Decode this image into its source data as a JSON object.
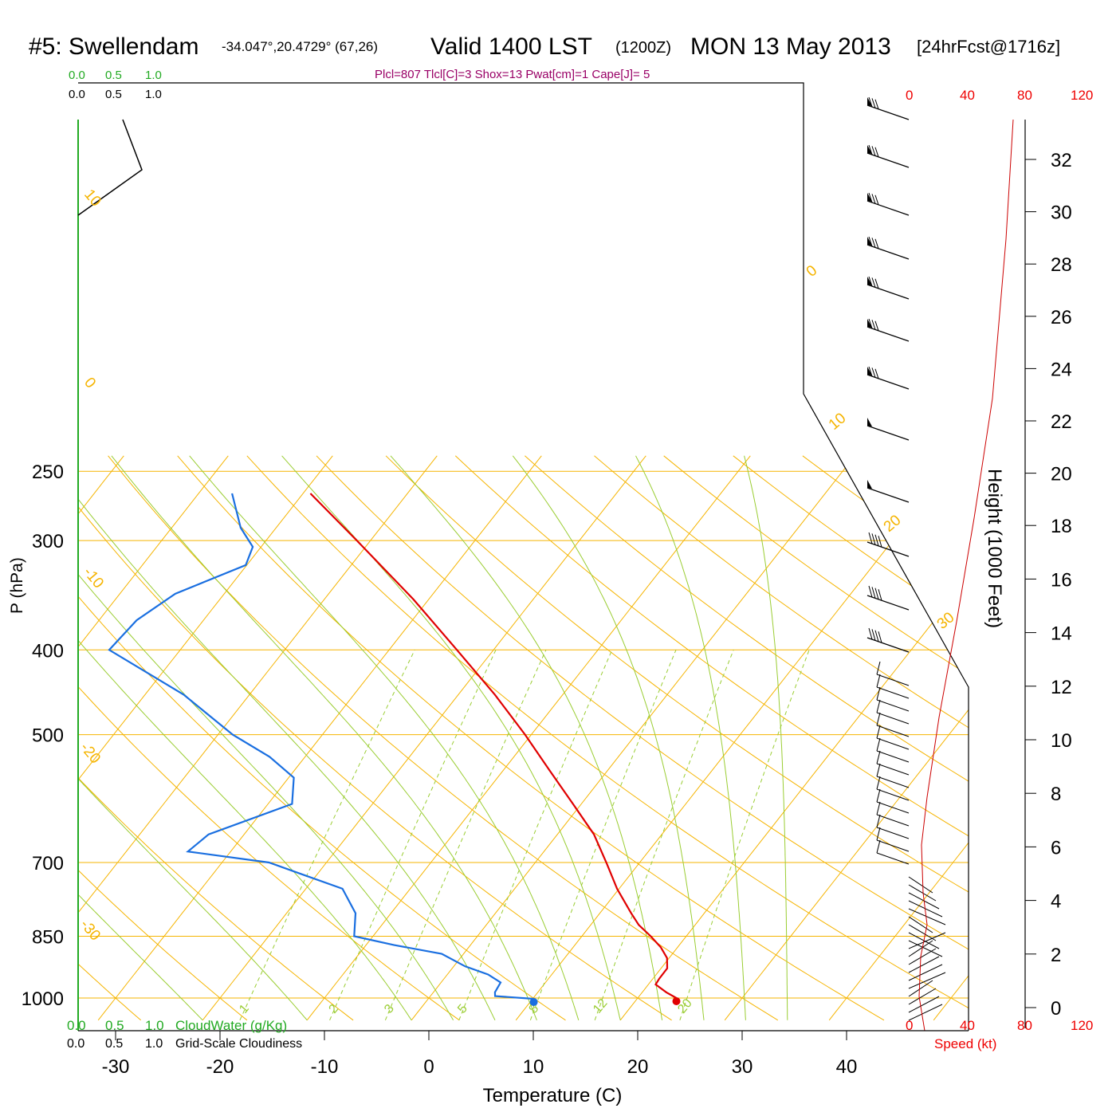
{
  "header": {
    "station": "#5: Swellendam",
    "coords": "-34.047°,20.4729° (67,26)",
    "valid": "Valid 1400 LST",
    "zulu": "(1200Z)",
    "date": "MON 13 May 2013",
    "forecast": "[24hrFcst@1716z]"
  },
  "params_line": "Plcl=807 Tlcl[C]=3 Shox=13 Pwat[cm]=1 Cape[J]= 5",
  "top_scales": {
    "cloudwater_ticks": [
      "0.0",
      "0.5",
      "1.0"
    ],
    "cloudiness_ticks": [
      "0.0",
      "0.5",
      "1.0"
    ]
  },
  "bottom_labels": {
    "cloudwater": "CloudWater (g/Kg)",
    "cloudiness": "Grid-Scale Cloudiness",
    "speed_label": "Speed (kt)"
  },
  "colors": {
    "temperature": "#e00000",
    "dewpoint": "#1a6fe0",
    "isotherm": "#f5b400",
    "dry_adiabat": "#f5b400",
    "moist_adiabat": "#9acd32",
    "mixing_ratio": "#9acd32",
    "cloudwater": "#22aa22",
    "params": "#990066",
    "speed": "#ee0000"
  },
  "chart_data": {
    "type": "line",
    "chart": "skew-T log-P sounding",
    "xlabel": "Temperature (C)",
    "ylabel": "P (hPa)",
    "x_ticks": [
      -30,
      -20,
      -10,
      0,
      10,
      20,
      30,
      40
    ],
    "y_ticks": [
      250,
      300,
      400,
      500,
      700,
      850,
      1000
    ],
    "xlim_at_1000hPa": [
      -33,
      46
    ],
    "ylim": [
      1050,
      250
    ],
    "y_scale": "log",
    "grid": true,
    "isotherm_labels": [
      "10",
      "0",
      "-10",
      "-20",
      "-30",
      "0",
      "10",
      "20",
      "30"
    ],
    "mixing_ratio_labels": [
      "1",
      "2",
      "3",
      "5",
      "8",
      "12",
      "20"
    ],
    "series": [
      {
        "name": "Temperature",
        "points": [
          {
            "p": 1000,
            "t": 23.7
          },
          {
            "p": 985,
            "t": 22.3
          },
          {
            "p": 965,
            "t": 20.7
          },
          {
            "p": 950,
            "t": 20.6
          },
          {
            "p": 925,
            "t": 20.6
          },
          {
            "p": 900,
            "t": 19.8
          },
          {
            "p": 875,
            "t": 18.4
          },
          {
            "p": 850,
            "t": 16.6
          },
          {
            "p": 825,
            "t": 14.6
          },
          {
            "p": 800,
            "t": 13.0
          },
          {
            "p": 750,
            "t": 9.8
          },
          {
            "p": 700,
            "t": 6.8
          },
          {
            "p": 650,
            "t": 3.5
          },
          {
            "p": 600,
            "t": -0.8
          },
          {
            "p": 550,
            "t": -5.5
          },
          {
            "p": 500,
            "t": -10.6
          },
          {
            "p": 450,
            "t": -16.5
          },
          {
            "p": 400,
            "t": -23.5
          },
          {
            "p": 350,
            "t": -31.5
          },
          {
            "p": 300,
            "t": -41.3
          },
          {
            "p": 265,
            "t": -49.3
          }
        ]
      },
      {
        "name": "Dewpoint",
        "points": [
          {
            "p": 1002,
            "t": 10.1
          },
          {
            "p": 995,
            "t": 6.2
          },
          {
            "p": 985,
            "t": 5.9
          },
          {
            "p": 960,
            "t": 5.7
          },
          {
            "p": 940,
            "t": 3.9
          },
          {
            "p": 920,
            "t": 1.1
          },
          {
            "p": 890,
            "t": -2.1
          },
          {
            "p": 870,
            "t": -7.3
          },
          {
            "p": 850,
            "t": -11.8
          },
          {
            "p": 800,
            "t": -13.4
          },
          {
            "p": 750,
            "t": -16.5
          },
          {
            "p": 700,
            "t": -25.5
          },
          {
            "p": 680,
            "t": -34.1
          },
          {
            "p": 650,
            "t": -33.4
          },
          {
            "p": 600,
            "t": -27.7
          },
          {
            "p": 560,
            "t": -29.5
          },
          {
            "p": 530,
            "t": -33.4
          },
          {
            "p": 500,
            "t": -38.6
          },
          {
            "p": 450,
            "t": -46.3
          },
          {
            "p": 400,
            "t": -56.8
          },
          {
            "p": 370,
            "t": -56.4
          },
          {
            "p": 345,
            "t": -54.7
          },
          {
            "p": 320,
            "t": -50.1
          },
          {
            "p": 305,
            "t": -50.8
          },
          {
            "p": 290,
            "t": -53.4
          },
          {
            "p": 265,
            "t": -56.8
          }
        ]
      }
    ],
    "height_axis": {
      "label": "Height (1000 Feet)",
      "ticks": [
        0,
        2,
        4,
        6,
        8,
        10,
        12,
        14,
        16,
        18,
        20,
        22,
        24,
        26,
        28,
        30,
        32
      ]
    },
    "speed_axis": {
      "label": "Speed (kt)",
      "ticks": [
        "0",
        "40",
        "80",
        "120"
      ]
    }
  }
}
